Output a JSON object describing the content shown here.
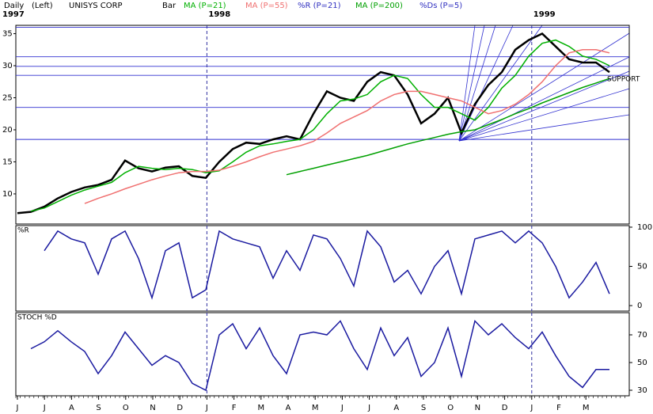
{
  "chart_data": [
    {
      "type": "line",
      "period": "Daily",
      "axis_side": "(Left)",
      "title": "UNISYS CORP",
      "year_labels": [
        "1997",
        "1998",
        "1999"
      ],
      "ylim": [
        5.3,
        36.3
      ],
      "yticks": [
        10,
        15,
        20,
        25,
        30,
        35
      ],
      "hlines": [
        36.0,
        31.4,
        29.9,
        28.5,
        23.5,
        18.5
      ],
      "annotation": "SUPPORT",
      "series": [
        {
          "name": "Bar",
          "color": "#000000",
          "values": [
            7.0,
            7.2,
            8.0,
            9.3,
            10.3,
            11.0,
            11.4,
            12.2,
            15.2,
            14.0,
            13.5,
            14.1,
            14.3,
            12.8,
            12.5,
            15.0,
            17.0,
            18.0,
            17.8,
            18.5,
            19.0,
            18.5,
            22.5,
            26.0,
            25.0,
            24.5,
            27.5,
            29.0,
            28.5,
            25.5,
            21.0,
            22.5,
            25.0,
            19.5,
            24.0,
            27.0,
            29.0,
            32.5,
            34.0,
            35.0,
            33.0,
            31.0,
            30.5,
            30.5,
            29.0
          ]
        },
        {
          "name": "MA (P=21)",
          "color": "#00b000",
          "values": [
            null,
            7.3,
            7.8,
            8.8,
            9.8,
            10.6,
            11.2,
            11.8,
            13.3,
            14.3,
            14.0,
            13.8,
            14.0,
            13.8,
            13.3,
            13.6,
            15.0,
            16.5,
            17.5,
            17.8,
            18.2,
            18.5,
            20.0,
            22.5,
            24.5,
            24.8,
            25.5,
            27.5,
            28.5,
            28.0,
            25.5,
            23.5,
            23.5,
            22.5,
            21.5,
            23.5,
            26.5,
            28.5,
            31.5,
            33.5,
            34.0,
            33.0,
            31.5,
            31.0,
            30.0
          ]
        },
        {
          "name": "MA (P=55)",
          "color": "#f07070",
          "values": [
            null,
            null,
            null,
            null,
            null,
            8.5,
            9.3,
            10.0,
            10.8,
            11.5,
            12.2,
            12.8,
            13.3,
            13.5,
            13.5,
            13.7,
            14.3,
            15.0,
            15.8,
            16.5,
            17.0,
            17.5,
            18.2,
            19.5,
            21.0,
            22.0,
            23.0,
            24.5,
            25.5,
            26.0,
            26.0,
            25.5,
            25.0,
            24.5,
            23.5,
            22.5,
            23.0,
            24.0,
            25.5,
            27.5,
            30.0,
            32.0,
            32.5,
            32.5,
            32.0
          ]
        },
        {
          "name": "MA (P=200)",
          "color": "#00a000",
          "values": [
            null,
            null,
            null,
            null,
            null,
            null,
            null,
            null,
            null,
            null,
            null,
            null,
            null,
            null,
            null,
            null,
            null,
            null,
            null,
            null,
            13.0,
            13.5,
            14.0,
            14.5,
            15.0,
            15.5,
            16.0,
            16.6,
            17.2,
            17.8,
            18.3,
            18.8,
            19.3,
            19.7,
            20.0,
            20.8,
            21.6,
            22.5,
            23.3,
            24.2,
            25.0,
            25.8,
            26.6,
            27.3,
            28.0
          ]
        }
      ]
    },
    {
      "type": "line",
      "title": "%R",
      "ylim": [
        -7,
        102
      ],
      "yticks": [
        0,
        50,
        100
      ],
      "series": [
        {
          "name": "%R (P=21)",
          "color": "#1a1aa0",
          "values": [
            null,
            null,
            70,
            95,
            85,
            80,
            40,
            85,
            95,
            60,
            10,
            70,
            80,
            10,
            20,
            95,
            85,
            80,
            75,
            35,
            70,
            45,
            90,
            85,
            60,
            25,
            95,
            75,
            30,
            45,
            15,
            50,
            70,
            15,
            85,
            90,
            95,
            80,
            95,
            80,
            50,
            10,
            30,
            55,
            15
          ]
        }
      ]
    },
    {
      "type": "line",
      "title": "STOCH %D",
      "ylim": [
        26,
        86
      ],
      "yticks": [
        30,
        50,
        70
      ],
      "x_labels": [
        "J",
        "J",
        "A",
        "S",
        "O",
        "N",
        "D",
        "J",
        "F",
        "M",
        "A",
        "M",
        "J",
        "J",
        "A",
        "S",
        "O",
        "N",
        "D",
        "J",
        "F",
        "M"
      ],
      "series": [
        {
          "name": "%Ds (P=5)",
          "color": "#1a1aa0",
          "values": [
            null,
            60,
            65,
            73,
            65,
            58,
            42,
            55,
            72,
            60,
            48,
            55,
            50,
            35,
            30,
            70,
            78,
            60,
            75,
            55,
            42,
            70,
            72,
            70,
            80,
            60,
            45,
            75,
            55,
            68,
            40,
            50,
            75,
            40,
            80,
            70,
            78,
            68,
            60,
            72,
            55,
            40,
            32,
            45,
            45
          ]
        }
      ]
    }
  ]
}
